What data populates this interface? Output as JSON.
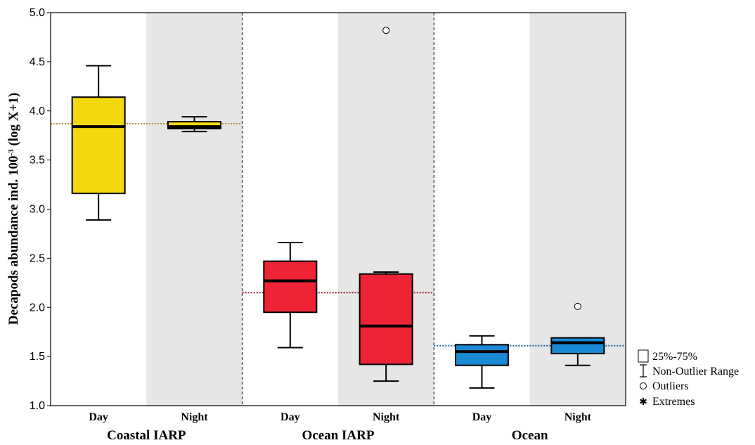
{
  "chart_data": {
    "type": "box",
    "ylabel_main": "Decapods abundance ind. 100",
    "ylabel_sup": "-3",
    "ylabel_tail": " (log X+1)",
    "ylim": [
      1.0,
      5.0
    ],
    "yticks": [
      "1.0",
      "1.5",
      "2.0",
      "2.5",
      "3.0",
      "3.5",
      "4.0",
      "4.5",
      "5.0"
    ],
    "ytick_values": [
      1.0,
      1.5,
      2.0,
      2.5,
      3.0,
      3.5,
      4.0,
      4.5,
      5.0
    ],
    "shaded_category": "Night",
    "groups": [
      {
        "name": "Coastal IARP",
        "color": "#F5D90F",
        "mean_line_color": "#A89530",
        "mean": 3.87,
        "boxes": [
          {
            "category": "Day",
            "whisker_low": 2.89,
            "q1": 3.16,
            "median": 3.84,
            "q3": 4.14,
            "whisker_high": 4.46,
            "outliers": []
          },
          {
            "category": "Night",
            "whisker_low": 3.79,
            "q1": 3.82,
            "median": 3.84,
            "q3": 3.89,
            "whisker_high": 3.94,
            "outliers": []
          }
        ]
      },
      {
        "name": "Ocean IARP",
        "color": "#EE2436",
        "mean_line_color": "#A0182A",
        "mean": 2.15,
        "boxes": [
          {
            "category": "Day",
            "whisker_low": 1.59,
            "q1": 1.95,
            "median": 2.27,
            "q3": 2.47,
            "whisker_high": 2.66,
            "outliers": []
          },
          {
            "category": "Night",
            "whisker_low": 1.25,
            "q1": 1.42,
            "median": 1.81,
            "q3": 2.34,
            "whisker_high": 2.36,
            "outliers": [
              4.82
            ]
          }
        ]
      },
      {
        "name": "Ocean",
        "color": "#1A8AD4",
        "mean_line_color": "#1A5C9C",
        "mean": 1.61,
        "boxes": [
          {
            "category": "Day",
            "whisker_low": 1.18,
            "q1": 1.41,
            "median": 1.55,
            "q3": 1.62,
            "whisker_high": 1.71,
            "outliers": []
          },
          {
            "category": "Night",
            "whisker_low": 1.41,
            "q1": 1.53,
            "median": 1.64,
            "q3": 1.69,
            "whisker_high": 1.69,
            "outliers": [
              2.01
            ]
          }
        ]
      }
    ],
    "legend": {
      "position": "bottom-right",
      "items": [
        {
          "symbol": "box",
          "label": "25%-75%"
        },
        {
          "symbol": "whisker",
          "label": "Non-Outlier Range"
        },
        {
          "symbol": "circle",
          "label": "Outliers"
        },
        {
          "symbol": "star",
          "label": "Extremes"
        }
      ]
    }
  }
}
